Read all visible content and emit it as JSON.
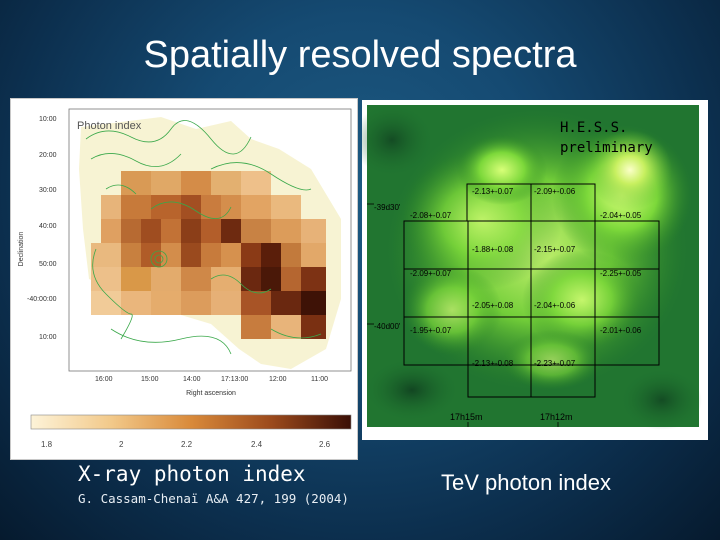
{
  "slide": {
    "title": "Spatially resolved spectra"
  },
  "xray_map": {
    "map_label": "Photon index",
    "y_axis_label": "Declination",
    "x_axis_label": "Right ascension",
    "y_ticks": [
      "10:00",
      "20:00",
      "30:00",
      "40:00",
      "50:00",
      "-40:00:00",
      "10:00"
    ],
    "x_ticks": [
      "16:00",
      "15:00",
      "14:00",
      "17:13:00",
      "12:00",
      "11:00"
    ],
    "colorbar_ticks": [
      "1.8",
      "2",
      "2.2",
      "2.4",
      "2.6"
    ],
    "caption": "X-ray photon index",
    "reference": "G. Cassam-Chenaï A&A 427, 199 (2004)"
  },
  "hess_map": {
    "watermark_line1": "H.E.S.S.",
    "watermark_line2": "preliminary",
    "dec_labels": [
      "-39d30'",
      "-40d00'"
    ],
    "ra_labels": [
      "17h15m",
      "17h12m"
    ],
    "cell_values": [
      "-2.13+-0.07",
      "-2.09+-0.06",
      "-2.08+-0.07",
      "-2.04+-0.05",
      "-1.88+-0.08",
      "-2.15+-0.07",
      "-2.09+-0.07",
      "-2.25+-0.05",
      "-2.05+-0.08",
      "-2.04+-0.06",
      "-1.95+-0.07",
      "-2.01+-0.06",
      "-2.13+-0.08",
      "-2.23+-0.07"
    ],
    "caption": "TeV photon index"
  }
}
